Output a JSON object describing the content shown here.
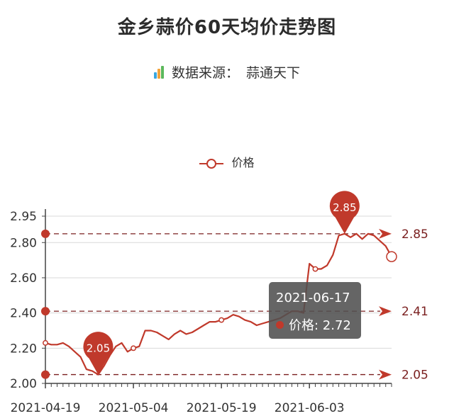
{
  "header": {
    "title": "金乡蒜价60天均价走势图",
    "source_label": "数据来源：",
    "source_name": "蒜通天下"
  },
  "colors": {
    "series": "#c0392b",
    "grid": "#d9d9d9",
    "axis": "#444444",
    "tooltip_bg": "#555555",
    "icon_bars": [
      "#3aa7e0",
      "#f2a33a",
      "#5cb85c"
    ]
  },
  "tooltip": {
    "date": "2021-06-17",
    "label": "价格",
    "separator": ": ",
    "value": "2.72"
  },
  "chart_data": {
    "type": "line",
    "title": "金乡蒜价60天均价走势图",
    "legend": [
      "价格"
    ],
    "legend_position": "top-center",
    "grid": "horizontal",
    "x_tick_labels": [
      "2021-04-19",
      "2021-05-04",
      "2021-05-19",
      "2021-06-03"
    ],
    "y_tick_labels": [
      "2.00",
      "2.20",
      "2.40",
      "2.60",
      "2.80",
      "2.95"
    ],
    "ylim": [
      2.0,
      2.95
    ],
    "series": [
      {
        "name": "价格",
        "x": [
          "2021-04-19",
          "2021-04-20",
          "2021-04-21",
          "2021-04-22",
          "2021-04-23",
          "2021-04-24",
          "2021-04-25",
          "2021-04-26",
          "2021-04-27",
          "2021-04-28",
          "2021-04-29",
          "2021-04-30",
          "2021-05-01",
          "2021-05-02",
          "2021-05-03",
          "2021-05-04",
          "2021-05-05",
          "2021-05-06",
          "2021-05-07",
          "2021-05-08",
          "2021-05-09",
          "2021-05-10",
          "2021-05-11",
          "2021-05-12",
          "2021-05-13",
          "2021-05-14",
          "2021-05-15",
          "2021-05-16",
          "2021-05-17",
          "2021-05-18",
          "2021-05-19",
          "2021-05-20",
          "2021-05-21",
          "2021-05-22",
          "2021-05-23",
          "2021-05-24",
          "2021-05-25",
          "2021-05-26",
          "2021-05-27",
          "2021-05-28",
          "2021-05-29",
          "2021-05-30",
          "2021-05-31",
          "2021-06-01",
          "2021-06-02",
          "2021-06-03",
          "2021-06-04",
          "2021-06-05",
          "2021-06-06",
          "2021-06-07",
          "2021-06-08",
          "2021-06-09",
          "2021-06-10",
          "2021-06-11",
          "2021-06-12",
          "2021-06-13",
          "2021-06-14",
          "2021-06-15",
          "2021-06-16",
          "2021-06-17"
        ],
        "values": [
          2.23,
          2.22,
          2.22,
          2.23,
          2.21,
          2.18,
          2.15,
          2.08,
          2.07,
          2.05,
          2.1,
          2.16,
          2.21,
          2.23,
          2.18,
          2.2,
          2.21,
          2.3,
          2.3,
          2.29,
          2.27,
          2.25,
          2.28,
          2.3,
          2.28,
          2.29,
          2.31,
          2.33,
          2.35,
          2.35,
          2.36,
          2.37,
          2.39,
          2.38,
          2.36,
          2.35,
          2.33,
          2.34,
          2.35,
          2.36,
          2.37,
          2.39,
          2.41,
          2.41,
          2.4,
          2.68,
          2.65,
          2.65,
          2.67,
          2.73,
          2.84,
          2.85,
          2.83,
          2.85,
          2.82,
          2.85,
          2.84,
          2.81,
          2.78,
          2.72
        ]
      }
    ],
    "mark_points": [
      {
        "label": "2.85",
        "x": "2021-06-09",
        "y": 2.85
      },
      {
        "label": "2.05",
        "x": "2021-04-28",
        "y": 2.05
      }
    ],
    "mark_lines": [
      {
        "label": "2.85",
        "y": 2.85
      },
      {
        "label": "2.41",
        "y": 2.41
      },
      {
        "label": "2.05",
        "y": 2.05
      }
    ],
    "hollow_markers": [
      "2021-04-19",
      "2021-05-04",
      "2021-05-19",
      "2021-06-04",
      "2021-06-17"
    ]
  }
}
